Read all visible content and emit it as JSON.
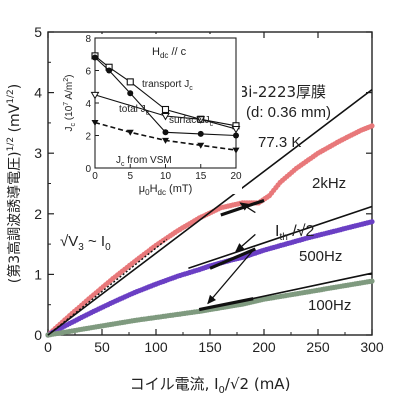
{
  "chart_data": [
    {
      "id": "main",
      "type": "line",
      "xlabel_parts": {
        "prefix": "コイル電流, I",
        "sub": "0",
        "slash": "/",
        "sqrt": "√",
        "two": "2",
        "unit": " (mA)"
      },
      "ylabel_parts": {
        "open": "(",
        "jp": "第3高調波誘導電圧",
        "close": ")",
        "sup": "1/2",
        "unit": " (mV",
        "unit_sup": "1/2",
        "unit_close": ")"
      },
      "xlim": [
        0,
        300
      ],
      "ylim": [
        0,
        5
      ],
      "xticks": [
        "0",
        "50",
        "100",
        "150",
        "200",
        "250",
        "300"
      ],
      "yticks": [
        "0",
        "1",
        "2",
        "3",
        "4",
        "5"
      ],
      "xtick_values": [
        0,
        50,
        100,
        150,
        200,
        250,
        300
      ],
      "ytick_values": [
        0,
        1,
        2,
        3,
        4,
        5
      ],
      "sample_label": "Bi-2223厚膜",
      "thickness_label": "(d: 0.36 mm)",
      "temperature_label": "77.3 K",
      "relation_parts": {
        "sqrt": "√",
        "v": "V",
        "vsub": "3",
        "sim": " ~ I",
        "isub": "0"
      },
      "ith_parts": {
        "i": "I",
        "sub": "th",
        "slash": " /",
        "sqrt": "√",
        "two": "2"
      },
      "series": [
        {
          "label": "2kHz",
          "color": "#e8787a",
          "x": [
            0,
            20,
            40,
            60,
            80,
            100,
            120,
            140,
            160,
            180,
            195,
            205,
            215,
            230,
            250,
            270,
            290,
            300
          ],
          "y": [
            0,
            0.32,
            0.63,
            0.93,
            1.21,
            1.48,
            1.72,
            1.93,
            2.1,
            2.18,
            2.18,
            2.3,
            2.52,
            2.75,
            3.0,
            3.2,
            3.38,
            3.45
          ]
        },
        {
          "label": "500Hz",
          "color": "#6a3fc4",
          "x": [
            0,
            20,
            40,
            60,
            80,
            100,
            120,
            140,
            150,
            160,
            170,
            180,
            190,
            200,
            220,
            240,
            260,
            280,
            300
          ],
          "y": [
            0,
            0.19,
            0.37,
            0.54,
            0.7,
            0.84,
            0.97,
            1.08,
            1.14,
            1.19,
            1.24,
            1.28,
            1.34,
            1.4,
            1.5,
            1.6,
            1.69,
            1.78,
            1.87
          ]
        },
        {
          "label": "100Hz",
          "color": "#7f9a7f",
          "x": [
            0,
            20,
            40,
            60,
            80,
            100,
            120,
            140,
            150,
            160,
            170,
            180,
            190,
            200,
            220,
            240,
            260,
            280,
            300
          ],
          "y": [
            0,
            0.06,
            0.12,
            0.18,
            0.24,
            0.29,
            0.34,
            0.39,
            0.42,
            0.45,
            0.48,
            0.51,
            0.55,
            0.59,
            0.65,
            0.71,
            0.77,
            0.83,
            0.89
          ]
        }
      ],
      "reference_lines": [
        {
          "x": [
            0,
            300
          ],
          "y": [
            0,
            4.05
          ]
        },
        {
          "x": [
            130,
            300
          ],
          "y": [
            1.1,
            2.12
          ]
        },
        {
          "x": [
            150,
            300
          ],
          "y": [
            0.45,
            1.02
          ]
        }
      ],
      "ith_arrows": [
        {
          "from": [
            192,
            2.02
          ],
          "to": [
            178,
            2.18
          ]
        },
        {
          "from": [
            192,
            1.66
          ],
          "to": [
            174,
            1.38
          ]
        },
        {
          "from": [
            190,
            1.4
          ],
          "to": [
            148,
            0.52
          ]
        }
      ]
    },
    {
      "id": "inset",
      "type": "line",
      "xlabel_parts": {
        "mu": "μ",
        "zero": "0",
        "h": "H",
        "dc": "dc",
        "unit": " (mT)"
      },
      "ylabel_parts": {
        "j": "J",
        "c": "c",
        "mid": " (10",
        "seven": "7",
        "unit": " A/m",
        "two": "2",
        "close": ")"
      },
      "title_parts": {
        "h": "H",
        "dc": "dc",
        "par": " // c"
      },
      "xlim": [
        0,
        20
      ],
      "ylim": [
        0,
        8
      ],
      "xticks": [
        "0",
        "5",
        "10",
        "15",
        "20"
      ],
      "yticks": [
        "0",
        "2",
        "4",
        "6",
        "8"
      ],
      "xtick_values": [
        0,
        5,
        10,
        15,
        20
      ],
      "ytick_values": [
        0,
        2,
        4,
        6,
        8
      ],
      "series": [
        {
          "label_parts": {
            "t": "transport J",
            "c": "c"
          },
          "marker": "square",
          "x": [
            0,
            2,
            5,
            10,
            15,
            20
          ],
          "y": [
            6.9,
            6.2,
            5.3,
            3.6,
            3.0,
            2.6
          ]
        },
        {
          "label_parts": {
            "t": "total J",
            "c": "c"
          },
          "marker": "circle",
          "x": [
            0,
            2,
            5,
            10,
            15,
            20
          ],
          "y": [
            6.8,
            6.0,
            4.6,
            2.2,
            2.1,
            2.0
          ]
        },
        {
          "label_parts": {
            "t": "surface J",
            "c": "c"
          },
          "marker": "triangle",
          "x": [
            0,
            10,
            15,
            20
          ],
          "y": [
            4.5,
            3.2,
            3.0,
            2.4
          ]
        },
        {
          "label_parts": {
            "t": "J",
            "c": "c",
            "rest": " from VSM"
          },
          "marker": "filled-triangle",
          "dashed": true,
          "x": [
            0,
            5,
            10,
            15,
            20
          ],
          "y": [
            2.8,
            2.2,
            1.7,
            1.4,
            1.1
          ]
        }
      ]
    }
  ],
  "freq_labels": [
    "2kHz",
    "500Hz",
    "100Hz"
  ]
}
